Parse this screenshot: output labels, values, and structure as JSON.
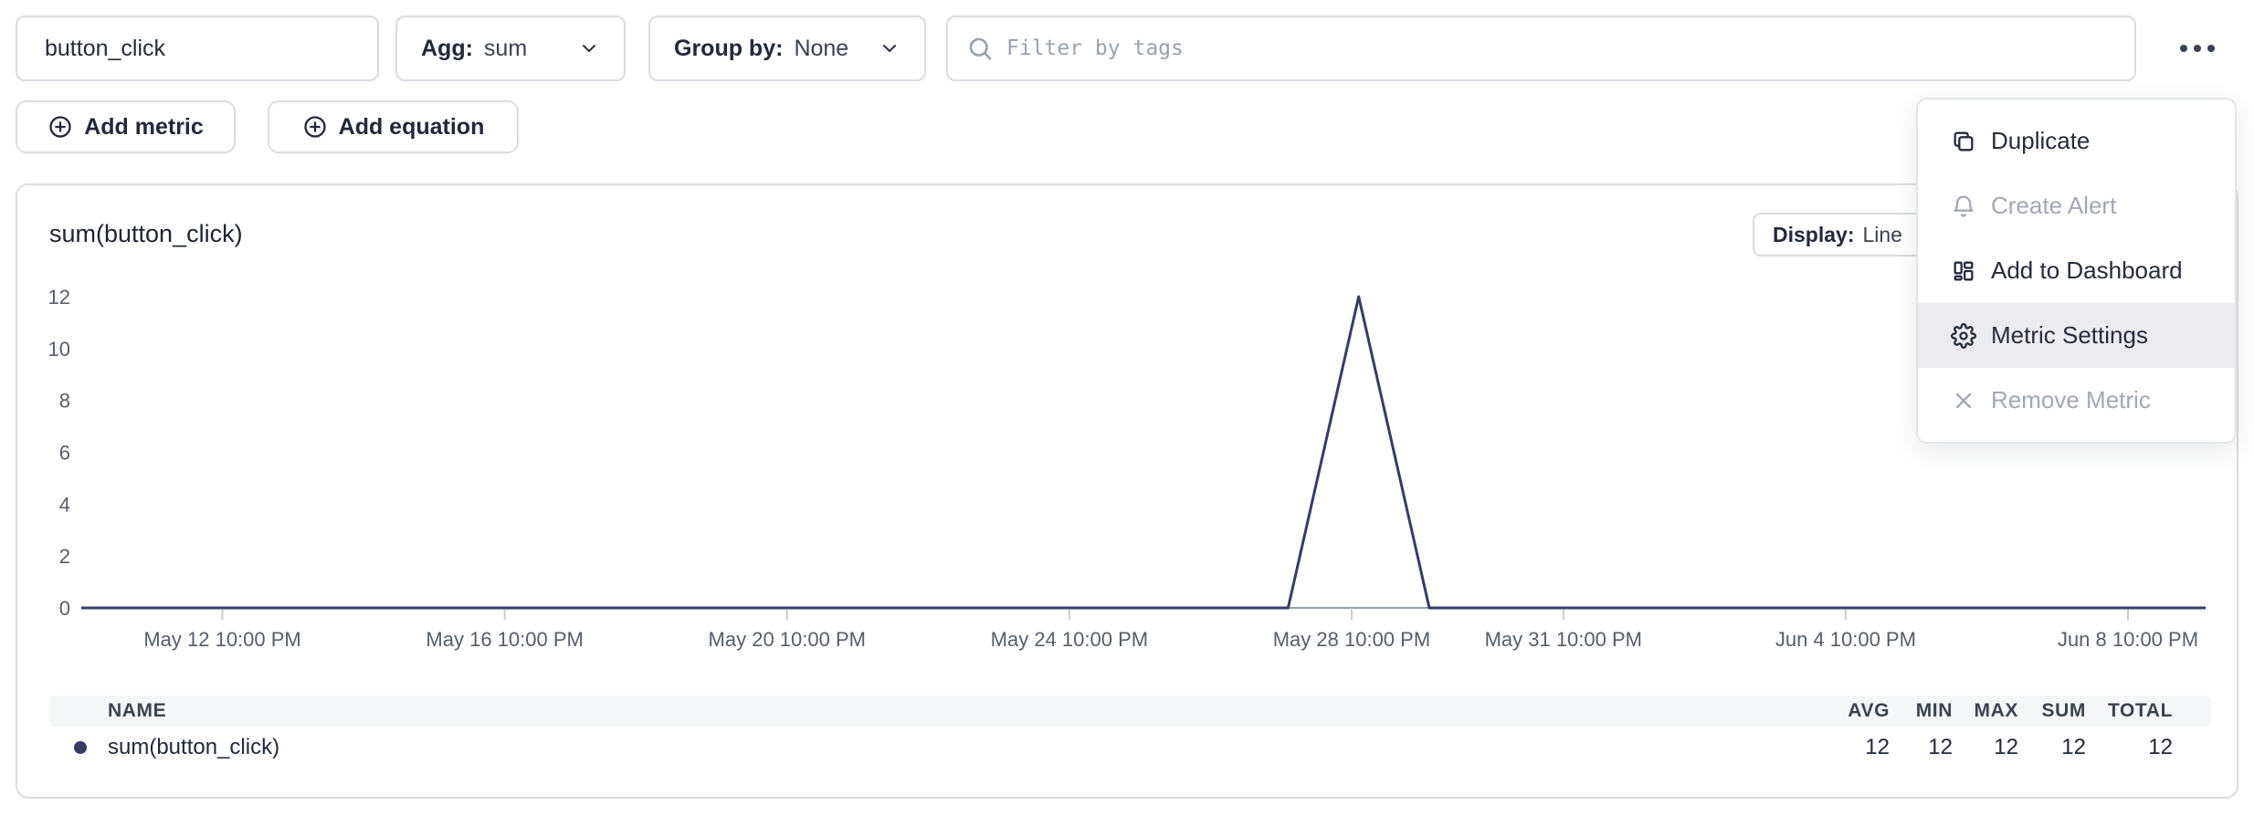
{
  "toolbar": {
    "metric_name": {
      "value": "button_click"
    },
    "aggregation": {
      "label": "Agg:",
      "value": "sum"
    },
    "group_by": {
      "label": "Group by:",
      "value": "None"
    },
    "tag_filter": {
      "placeholder": "Filter by tags"
    }
  },
  "actions": {
    "add_metric_label": "Add metric",
    "add_equation_label": "Add equation"
  },
  "menu": {
    "items": [
      {
        "label": "Duplicate",
        "icon": "copy-icon",
        "disabled": false,
        "highlighted": false
      },
      {
        "label": "Create Alert",
        "icon": "alert-bell-icon",
        "disabled": true,
        "highlighted": false
      },
      {
        "label": "Add to Dashboard",
        "icon": "dashboard-icon",
        "disabled": false,
        "highlighted": false
      },
      {
        "label": "Metric Settings",
        "icon": "gear-icon",
        "disabled": false,
        "highlighted": true
      },
      {
        "label": "Remove Metric",
        "icon": "x-icon",
        "disabled": true,
        "highlighted": false
      }
    ]
  },
  "chart_panel": {
    "title": "sum(button_click)",
    "display_label": "Display:",
    "display_value": "Line"
  },
  "chart_data": {
    "type": "line",
    "title": "sum(button_click)",
    "ylim": [
      0,
      12
    ],
    "y_ticks": [
      0,
      2,
      4,
      6,
      8,
      10,
      12
    ],
    "x_domain_days": [
      -2,
      28.1
    ],
    "x_ticks": [
      {
        "pos": 0,
        "label": "May 12 10:00 PM"
      },
      {
        "pos": 4,
        "label": "May 16 10:00 PM"
      },
      {
        "pos": 8,
        "label": "May 20 10:00 PM"
      },
      {
        "pos": 12,
        "label": "May 24 10:00 PM"
      },
      {
        "pos": 16,
        "label": "May 28 10:00 PM"
      },
      {
        "pos": 19,
        "label": "May 31 10:00 PM"
      },
      {
        "pos": 23,
        "label": "Jun 4 10:00 PM"
      },
      {
        "pos": 27,
        "label": "Jun 8 10:00 PM"
      }
    ],
    "series": [
      {
        "name": "sum(button_click)",
        "color": "#363c66",
        "points": [
          [
            -2,
            0
          ],
          [
            15.1,
            0
          ],
          [
            16.1,
            12
          ],
          [
            17.1,
            0
          ],
          [
            28.1,
            0
          ]
        ]
      }
    ],
    "grid": false,
    "legend_position": "table-below"
  },
  "summary_table": {
    "headers": [
      "NAME",
      "AVG",
      "MIN",
      "MAX",
      "SUM",
      "TOTAL"
    ],
    "rows": [
      {
        "name": "sum(button_click)",
        "values": [
          "12",
          "12",
          "12",
          "12",
          "12"
        ]
      }
    ]
  },
  "colors": {
    "series": "#363c66",
    "menu_highlight": "#ececf0",
    "axis": "#98a0ab",
    "tick": "#c9ced6"
  }
}
